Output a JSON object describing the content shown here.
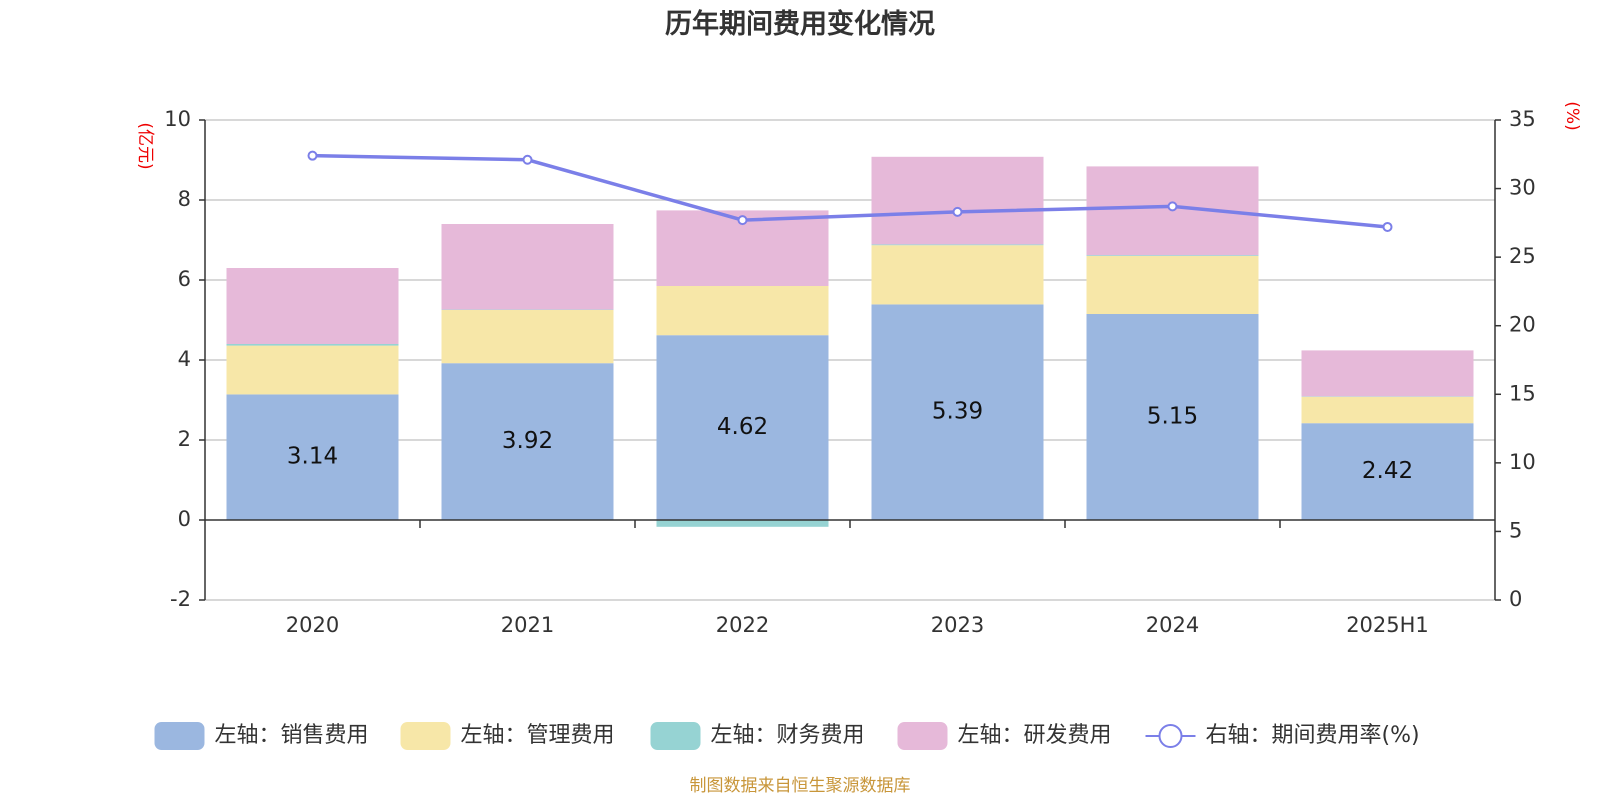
{
  "chart_data": {
    "type": "bar",
    "title": "历年期间费用变化情况",
    "categories": [
      "2020",
      "2021",
      "2022",
      "2023",
      "2024",
      "2025H1"
    ],
    "left_axis": {
      "unit": "(亿元)",
      "ylim": [
        -2,
        10
      ],
      "ticks": [
        -2,
        0,
        2,
        4,
        6,
        8,
        10
      ]
    },
    "right_axis": {
      "unit": "(%)",
      "ylim": [
        0,
        35
      ],
      "ticks": [
        0,
        5,
        10,
        15,
        20,
        25,
        30,
        35
      ]
    },
    "series": [
      {
        "name": "左轴：销售费用",
        "type": "bar",
        "axis": "left",
        "color": "#9bb7e0",
        "values": [
          3.14,
          3.92,
          4.62,
          5.39,
          5.15,
          2.42
        ],
        "show_labels": true
      },
      {
        "name": "左轴：管理费用",
        "type": "bar",
        "axis": "left",
        "color": "#f7e7a8",
        "values": [
          1.22,
          1.33,
          1.23,
          1.48,
          1.45,
          0.66
        ],
        "show_labels": false
      },
      {
        "name": "左轴：财务费用",
        "type": "bar",
        "axis": "left",
        "color": "#96d3d3",
        "values": [
          0.04,
          0.01,
          -0.17,
          0.02,
          0.02,
          0.01
        ],
        "show_labels": false
      },
      {
        "name": "左轴：研发费用",
        "type": "bar",
        "axis": "left",
        "color": "#e6b9d9",
        "values": [
          1.9,
          2.14,
          1.89,
          2.19,
          2.22,
          1.15
        ],
        "show_labels": false
      },
      {
        "name": "右轴：期间费用率(%)",
        "type": "line",
        "axis": "right",
        "color": "#7b7fe8",
        "values": [
          32.4,
          32.1,
          27.7,
          28.3,
          28.7,
          27.2
        ]
      }
    ],
    "legend_position": "bottom",
    "grid": true
  },
  "source_note": "制图数据来自恒生聚源数据库"
}
